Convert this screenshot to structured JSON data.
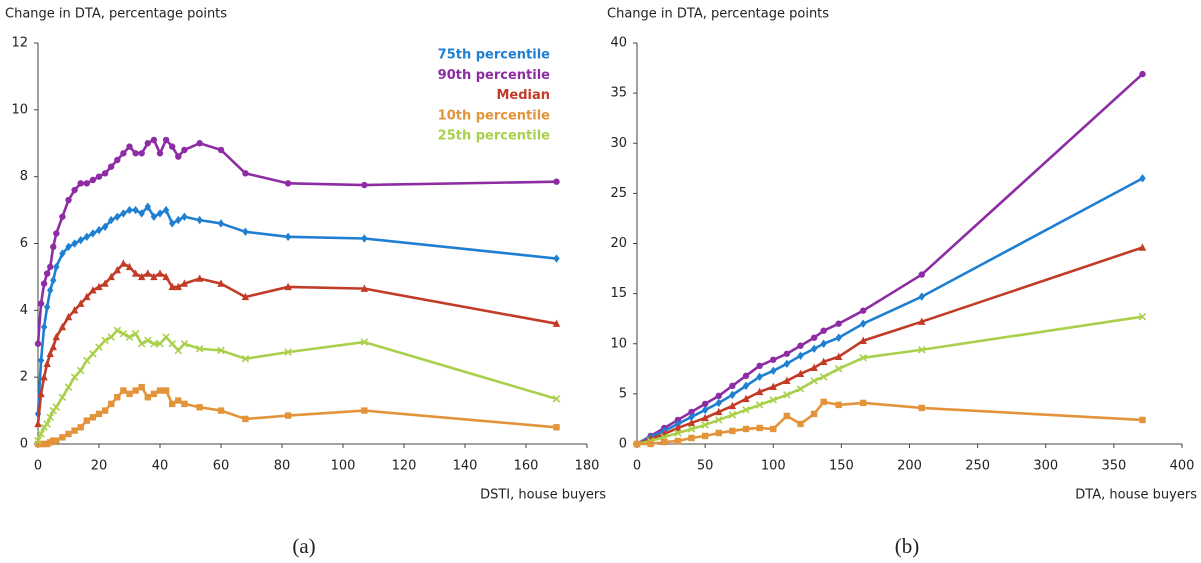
{
  "chart_data": [
    {
      "type": "line",
      "y_label": "Change in DTA, percentage points",
      "x_label": "DSTI, house buyers",
      "caption": "(a)",
      "xlim": [
        0,
        180
      ],
      "xticks": [
        0,
        20,
        40,
        60,
        80,
        100,
        120,
        140,
        160,
        180
      ],
      "ylim": [
        0,
        12
      ],
      "yticks": [
        0,
        2,
        4,
        6,
        8,
        10,
        12
      ],
      "x": [
        0,
        1,
        2,
        3,
        4,
        5,
        6,
        8,
        10,
        12,
        14,
        16,
        18,
        20,
        22,
        24,
        26,
        28,
        30,
        32,
        34,
        36,
        38,
        40,
        42,
        44,
        46,
        48,
        53,
        60,
        68,
        82,
        107,
        170
      ],
      "series": [
        {
          "name": "75th percentile",
          "color": "#1f7fd0",
          "marker": "diamond",
          "values": [
            0.9,
            2.5,
            3.5,
            4.1,
            4.6,
            4.9,
            5.3,
            5.7,
            5.9,
            6.0,
            6.1,
            6.2,
            6.3,
            6.4,
            6.5,
            6.7,
            6.8,
            6.9,
            7.0,
            7.0,
            6.9,
            7.1,
            6.8,
            6.9,
            7.0,
            6.6,
            6.7,
            6.8,
            6.7,
            6.6,
            6.35,
            6.2,
            6.15,
            5.55
          ]
        },
        {
          "name": "90th percentile",
          "color": "#8e2ca3",
          "marker": "circle",
          "values": [
            3.0,
            4.2,
            4.8,
            5.1,
            5.3,
            5.9,
            6.3,
            6.8,
            7.3,
            7.6,
            7.8,
            7.8,
            7.9,
            8.0,
            8.1,
            8.3,
            8.5,
            8.7,
            8.9,
            8.7,
            8.7,
            9.0,
            9.1,
            8.7,
            9.1,
            8.9,
            8.6,
            8.8,
            9.0,
            8.8,
            8.1,
            7.8,
            7.75,
            7.85
          ]
        },
        {
          "name": "Median",
          "color": "#c23b26",
          "marker": "triangle",
          "values": [
            0.6,
            1.5,
            2.0,
            2.4,
            2.7,
            2.9,
            3.2,
            3.5,
            3.8,
            4.0,
            4.2,
            4.4,
            4.6,
            4.7,
            4.8,
            5.0,
            5.2,
            5.4,
            5.3,
            5.1,
            5.0,
            5.1,
            5.0,
            5.1,
            5.0,
            4.7,
            4.7,
            4.8,
            4.95,
            4.8,
            4.4,
            4.7,
            4.65,
            3.6
          ]
        },
        {
          "name": "10th percentile",
          "color": "#e3943a",
          "marker": "square",
          "values": [
            0,
            0,
            0,
            0,
            0.05,
            0.1,
            0.1,
            0.2,
            0.3,
            0.4,
            0.5,
            0.7,
            0.8,
            0.9,
            1.0,
            1.2,
            1.4,
            1.6,
            1.5,
            1.6,
            1.7,
            1.4,
            1.5,
            1.6,
            1.6,
            1.2,
            1.3,
            1.2,
            1.1,
            1.0,
            0.75,
            0.85,
            1.0,
            0.5
          ]
        },
        {
          "name": "25th percentile",
          "color": "#a9d04a",
          "marker": "x",
          "values": [
            0.1,
            0.3,
            0.5,
            0.6,
            0.8,
            1.0,
            1.1,
            1.4,
            1.7,
            2.0,
            2.2,
            2.5,
            2.7,
            2.9,
            3.1,
            3.2,
            3.4,
            3.3,
            3.2,
            3.3,
            3.0,
            3.1,
            3.0,
            3.0,
            3.2,
            3.0,
            2.8,
            3.0,
            2.85,
            2.8,
            2.55,
            2.75,
            3.05,
            1.35
          ]
        }
      ]
    },
    {
      "type": "line",
      "y_label": "Change in DTA, percentage points",
      "x_label": "DTA, house buyers",
      "caption": "(b)",
      "xlim": [
        0,
        400
      ],
      "xticks": [
        0,
        50,
        100,
        150,
        200,
        250,
        300,
        350,
        400
      ],
      "ylim": [
        0,
        40
      ],
      "yticks": [
        0,
        5,
        10,
        15,
        20,
        25,
        30,
        35,
        40
      ],
      "x": [
        0,
        10,
        20,
        30,
        40,
        50,
        60,
        70,
        80,
        90,
        100,
        110,
        120,
        130,
        137,
        148,
        166,
        209,
        371
      ],
      "series": [
        {
          "color": "#8e2ca3",
          "marker": "circle",
          "values": [
            0,
            0.8,
            1.6,
            2.4,
            3.2,
            4.0,
            4.8,
            5.8,
            6.8,
            7.8,
            8.4,
            9.0,
            9.8,
            10.6,
            11.3,
            12.0,
            13.3,
            16.9,
            36.9
          ]
        },
        {
          "color": "#1f7fd0",
          "marker": "diamond",
          "values": [
            0,
            0.7,
            1.3,
            2.0,
            2.7,
            3.4,
            4.1,
            4.9,
            5.8,
            6.7,
            7.3,
            8.0,
            8.8,
            9.5,
            10.0,
            10.6,
            12.0,
            14.7,
            26.5
          ]
        },
        {
          "color": "#c23b26",
          "marker": "triangle",
          "values": [
            0,
            0.5,
            1.0,
            1.6,
            2.1,
            2.6,
            3.2,
            3.8,
            4.5,
            5.2,
            5.7,
            6.3,
            7.0,
            7.6,
            8.2,
            8.7,
            10.3,
            12.2,
            19.6
          ]
        },
        {
          "color": "#a9d04a",
          "marker": "x",
          "values": [
            0,
            0.3,
            0.7,
            1.1,
            1.5,
            1.9,
            2.4,
            2.9,
            3.4,
            3.9,
            4.4,
            4.9,
            5.5,
            6.3,
            6.7,
            7.5,
            8.6,
            9.4,
            12.7
          ]
        },
        {
          "color": "#e3943a",
          "marker": "square",
          "values": [
            0,
            0,
            0.2,
            0.3,
            0.6,
            0.8,
            1.1,
            1.3,
            1.5,
            1.6,
            1.5,
            2.8,
            2.0,
            3.0,
            4.2,
            3.9,
            4.1,
            3.6,
            2.4
          ]
        }
      ]
    }
  ]
}
